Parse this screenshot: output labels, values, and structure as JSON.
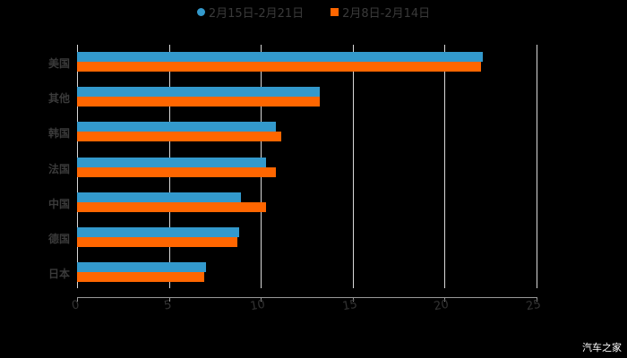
{
  "chart_data": {
    "type": "bar",
    "orientation": "horizontal",
    "title": "",
    "xlabel": "",
    "ylabel": "",
    "xlim": [
      0,
      25
    ],
    "x_ticks": [
      "0",
      "5",
      "10",
      "15",
      "20",
      "25"
    ],
    "grid": true,
    "legend_position": "top",
    "categories": [
      "美国",
      "其他",
      "韩国",
      "法国",
      "中国",
      "德国",
      "日本"
    ],
    "series": [
      {
        "name": "2月15日-2月21日",
        "color": "#3399cc",
        "values": [
          22.1,
          13.2,
          10.8,
          10.3,
          8.9,
          8.8,
          7.0
        ]
      },
      {
        "name": "2月8日-2月14日",
        "color": "#ff6600",
        "values": [
          22.0,
          13.2,
          11.1,
          10.8,
          10.3,
          8.7,
          6.9
        ]
      }
    ]
  },
  "legend": {
    "series1": "2月15日-2月21日",
    "series2": "2月8日-2月14日"
  },
  "watermark": "汽车之家"
}
